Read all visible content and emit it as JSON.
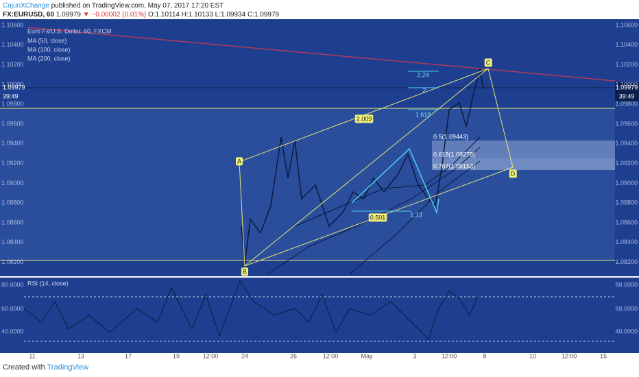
{
  "header": {
    "publisher": "CajunXChange",
    "published": "published on TradingView.com, May 07, 2017 17:20 EST",
    "symbol": "FX:EURUSD, 60",
    "last": "1.09979",
    "change": "▼ −0.00002 (0.01%)",
    "open": "O:1.10114",
    "high": "H:1.10133",
    "low": "L:1.09934",
    "close": "C:1.09979"
  },
  "legend": {
    "instrument": "Euro Fx/U.S. Dollar, 60, FXCM",
    "ma50": "MA (50, close)",
    "ma100": "MA (100, close)",
    "ma200": "MA (200, close)",
    "rsi": "RSI (14, close)"
  },
  "price_axis": [
    "1.10600",
    "1.10400",
    "1.10200",
    "1.10000",
    "1.09800",
    "1.09600",
    "1.09400",
    "1.09200",
    "1.09000",
    "1.08800",
    "1.08600",
    "1.08400",
    "1.08200"
  ],
  "price_tag": {
    "price": "1.09979",
    "countdown": "39:49"
  },
  "rsi_axis": [
    "80.0000",
    "60.0000",
    "40.0000"
  ],
  "time_axis": [
    "11",
    "13",
    "17",
    "19",
    "12:00",
    "24",
    "26",
    "12:00",
    "May",
    "3",
    "12:00",
    "8",
    "10",
    "12:00",
    "15"
  ],
  "pattern": {
    "a": "A",
    "b": "B",
    "c": "C",
    "d": "D",
    "ratio_bc": "2.009",
    "ext_224": "2.24",
    "ext_2": "2",
    "ext_1618": "1.618",
    "ratio_inner": "0.501",
    "ratio_113": "1.13",
    "fib_05": "0.5(1.09443)",
    "fib_0618": "0.618(1.09278)",
    "fib_0707": "0.707(1.09153)"
  },
  "footer": {
    "created": "Created with",
    "brand": "TradingView"
  }
}
